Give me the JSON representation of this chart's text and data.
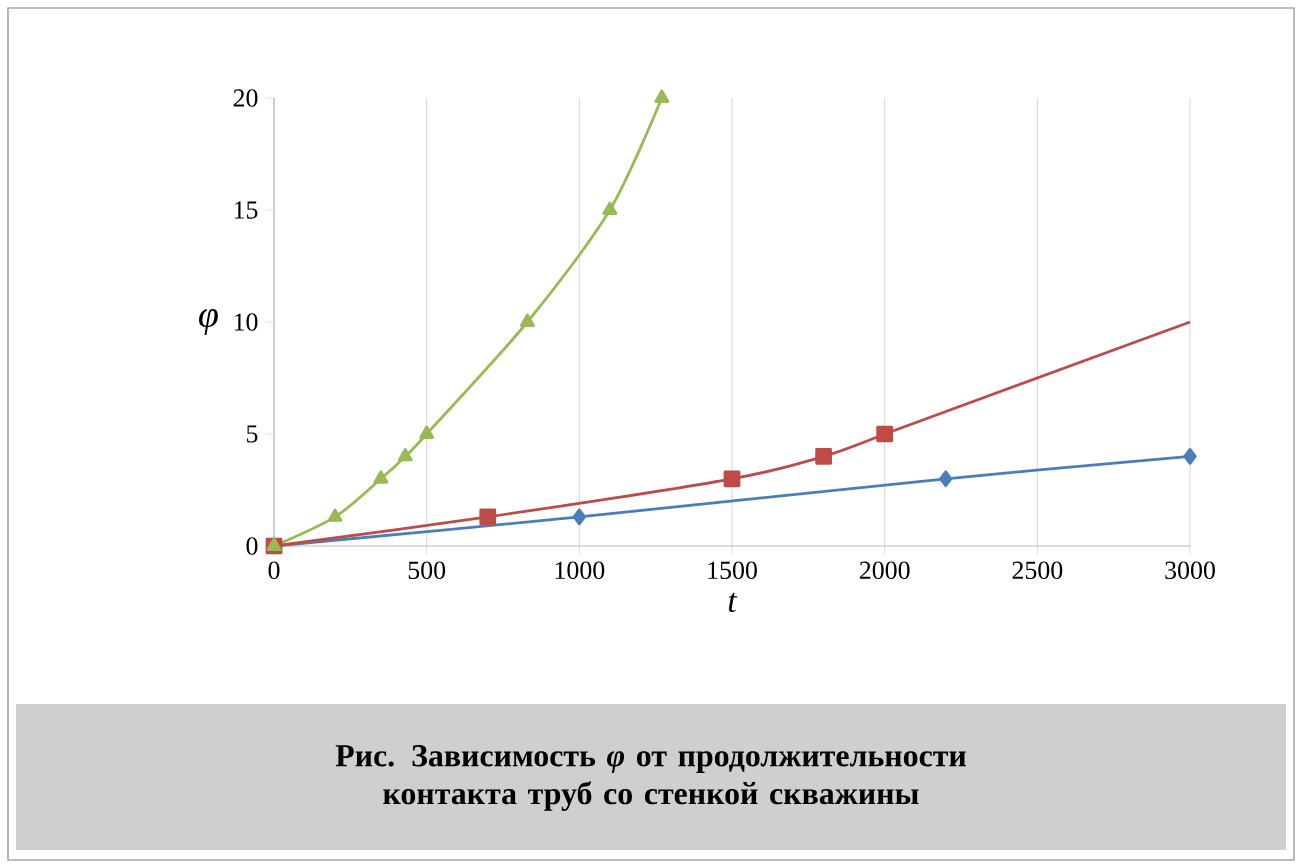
{
  "chart_data": {
    "type": "line",
    "xlabel": "t",
    "ylabel": "φ",
    "xlim": [
      0,
      3000
    ],
    "ylim": [
      0,
      20
    ],
    "xticks": [
      0,
      500,
      1000,
      1500,
      2000,
      2500,
      3000
    ],
    "yticks": [
      0,
      5,
      10,
      15,
      20
    ],
    "grid": "x",
    "line_style": "solid",
    "annotations": [
      "Рис. Зависимость *φ* от продолжительности контакта труб со стенкой скважины"
    ],
    "series": [
      {
        "color": "#4a7ebb",
        "marker": "diamond",
        "x": [
          0,
          1000,
          2200,
          3000
        ],
        "values": [
          0,
          1.3,
          3,
          4
        ]
      },
      {
        "color": "#be4b48",
        "marker": "square",
        "x": [
          0,
          700,
          1500,
          1800,
          2000
        ],
        "values": [
          0,
          1.3,
          3,
          4,
          5
        ]
      },
      {
        "color": "#be4b48",
        "marker": "none",
        "x": [
          2000,
          3000
        ],
        "values": [
          5,
          10
        ]
      },
      {
        "color": "#98b954",
        "marker": "triangle",
        "x": [
          0,
          200,
          350,
          430,
          500,
          830,
          1100,
          1270
        ],
        "values": [
          0,
          1.3,
          3,
          4,
          5,
          10,
          15,
          20
        ]
      }
    ]
  }
}
